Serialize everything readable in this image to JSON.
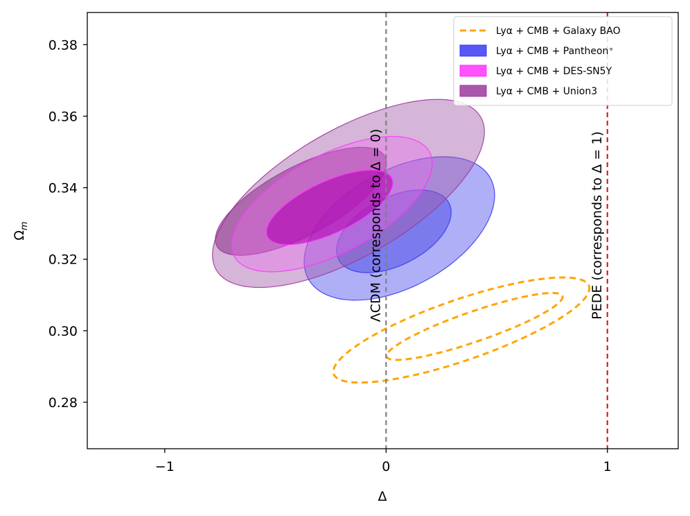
{
  "chart_data": {
    "type": "contour",
    "xlabel": "Δ",
    "ylabel_main": "Ω",
    "ylabel_sub": "m",
    "xlim": [
      -1.35,
      1.32
    ],
    "ylim": [
      0.267,
      0.389
    ],
    "grid": false,
    "legend_placement": "top-right",
    "x_ticks": [
      {
        "value": -1,
        "label": "−1"
      },
      {
        "value": 0,
        "label": "0"
      },
      {
        "value": 1,
        "label": "1"
      }
    ],
    "y_ticks": [
      {
        "value": 0.28,
        "label": "0.28"
      },
      {
        "value": 0.3,
        "label": "0.30"
      },
      {
        "value": 0.32,
        "label": "0.32"
      },
      {
        "value": 0.34,
        "label": "0.34"
      },
      {
        "value": 0.36,
        "label": "0.36"
      },
      {
        "value": 0.38,
        "label": "0.38"
      }
    ],
    "reference_lines": [
      {
        "x": 0,
        "color": "#808080",
        "label": "ΛCDM (corresponds to Δ = 0)"
      },
      {
        "x": 1,
        "color": "#e31a1c",
        "label": "PEDE (corresponds to Δ = 1)"
      }
    ],
    "legend": [
      {
        "series": "galaxy_bao",
        "label": "Lyα + CMB + Galaxy BAO",
        "style": "dashed",
        "color": "#ffa500"
      },
      {
        "series": "pantheon",
        "label": "Lyα + CMB + Pantheon⁺",
        "style": "filled",
        "color": "#3a3af5"
      },
      {
        "series": "des",
        "label": "Lyα + CMB + DES-SN5Y",
        "style": "filled",
        "color": "#ff33ff"
      },
      {
        "series": "union3",
        "label": "Lyα + CMB + Union3",
        "style": "filled",
        "color": "#9c3a9c"
      }
    ],
    "series": {
      "pantheon": {
        "color": "#3a3af5",
        "contours": [
          {
            "level": "95%",
            "center": [
              0.06,
              0.3286
            ],
            "rx": 0.47,
            "ry": 0.0163,
            "angle_deg": -29,
            "fill": "#6d6df0",
            "opacity": 0.55
          },
          {
            "level": "68%",
            "center": [
              0.035,
              0.3278
            ],
            "rx": 0.28,
            "ry": 0.0095,
            "angle_deg": -27,
            "fill": "#5050e8",
            "opacity": 0.55
          }
        ]
      },
      "union3": {
        "color": "#9c3a9c",
        "contours": [
          {
            "level": "95%",
            "center": [
              -0.17,
              0.3384
            ],
            "rx": 0.69,
            "ry": 0.0177,
            "angle_deg": -30,
            "fill": "#a15aa8",
            "opacity": 0.45
          },
          {
            "level": "68%",
            "center": [
              -0.385,
              0.3362
            ],
            "rx": 0.43,
            "ry": 0.0096,
            "angle_deg": -28,
            "fill": "#8a2c8a",
            "opacity": 0.55
          }
        ]
      },
      "des": {
        "color": "#ff33ff",
        "contours": [
          {
            "level": "95%",
            "center": [
              -0.245,
              0.3354
            ],
            "rx": 0.5,
            "ry": 0.0137,
            "angle_deg": -28,
            "fill": "#f066f0",
            "opacity": 0.35
          },
          {
            "level": "68%",
            "center": [
              -0.255,
              0.3345
            ],
            "rx": 0.31,
            "ry": 0.0072,
            "angle_deg": -25,
            "fill": "#b000b0",
            "opacity": 0.6
          }
        ]
      },
      "galaxy_bao": {
        "color": "#ffa500",
        "contours": [
          {
            "level": "95%",
            "center": [
              0.34,
              0.3002
            ],
            "rx": 0.61,
            "ry": 0.0085,
            "angle_deg": -19,
            "fill": "none",
            "opacity": 1
          },
          {
            "level": "68%",
            "center": [
              0.4,
              0.3012
            ],
            "rx": 0.42,
            "ry": 0.0042,
            "angle_deg": -19,
            "fill": "none",
            "opacity": 1
          }
        ]
      }
    }
  }
}
